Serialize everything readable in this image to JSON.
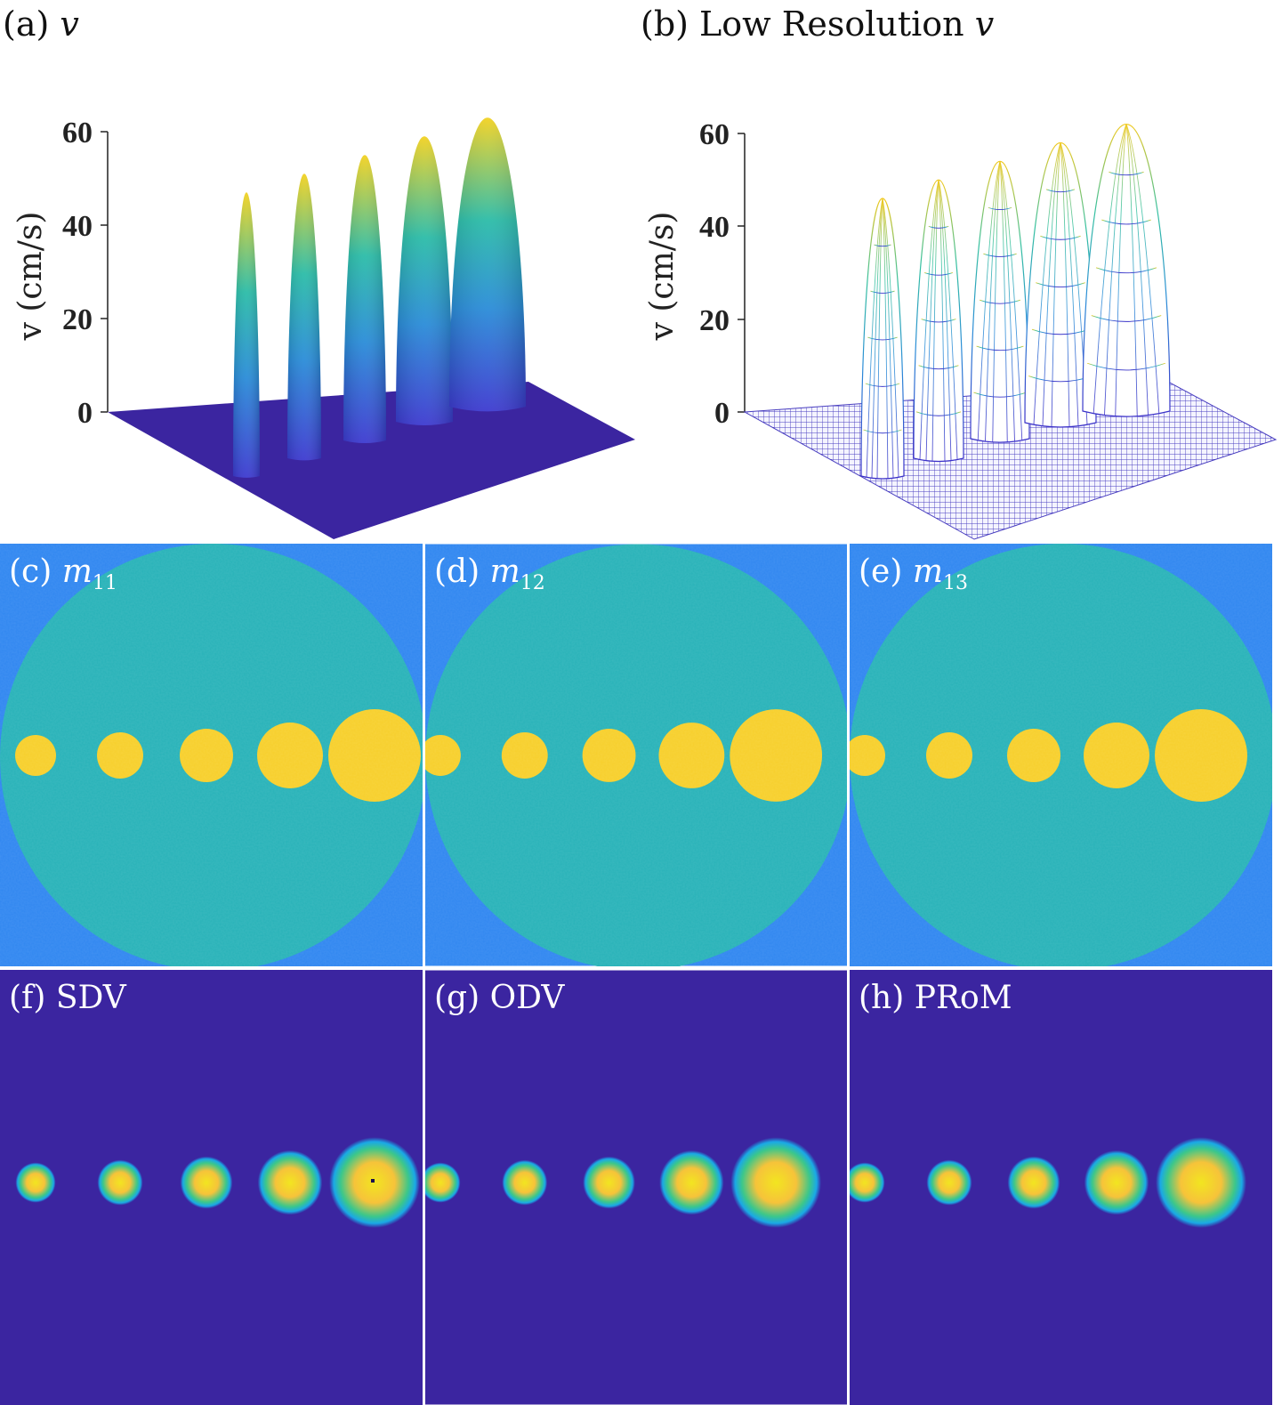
{
  "figure": {
    "a": {
      "label": "(a)",
      "var": "v"
    },
    "b": {
      "label": "(b) Low Resolution",
      "var": "v"
    },
    "panels_m": [
      {
        "label": "(c)",
        "sym": "m",
        "sub": "11"
      },
      {
        "label": "(d)",
        "sym": "m",
        "sub": "12"
      },
      {
        "label": "(e)",
        "sym": "m",
        "sub": "13"
      }
    ],
    "panels_v": [
      {
        "label": "(f) SDV"
      },
      {
        "label": "(g) ODV"
      },
      {
        "label": "(h) PRoM"
      }
    ]
  },
  "chart_data": [
    {
      "type": "surface",
      "title": "(a) v",
      "ylabel": "v (cm/s)",
      "zticks": [
        "0",
        "20",
        "40",
        "60"
      ],
      "zlim": [
        0,
        60
      ],
      "peaks": [
        47,
        51,
        55,
        59,
        63
      ],
      "style": "smooth surface"
    },
    {
      "type": "surface",
      "title": "(b) Low Resolution v",
      "ylabel": "v (cm/s)",
      "zticks": [
        "0",
        "20",
        "40",
        "60"
      ],
      "zlim": [
        0,
        60
      ],
      "peaks": [
        46,
        50,
        54,
        58,
        62
      ],
      "style": "mesh"
    }
  ],
  "colors": {
    "outer_bg": "#2f86f0",
    "disk": "#27b2b8",
    "vessel": "#f7cf2a",
    "dark_bg": "#3b25a0",
    "halo": "#1aa9e6",
    "core": "#f2e520"
  }
}
